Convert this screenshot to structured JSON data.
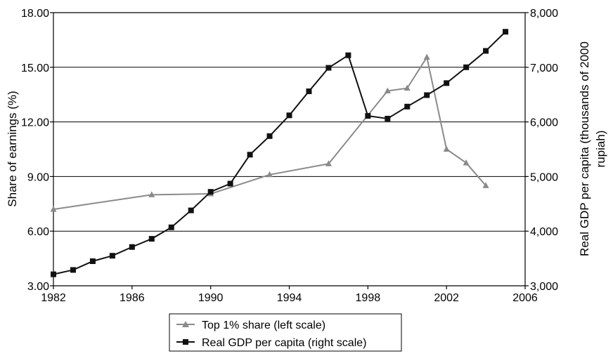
{
  "chart_data": {
    "type": "line",
    "title": "",
    "xlabel": "",
    "ylabel_left": "Share of earnings (%)",
    "ylabel_right_line1": "Real GDP per capita (thousands of 2000",
    "ylabel_right_line2": "rupiah)",
    "xlim": [
      1982,
      2006
    ],
    "ylim_left": [
      3.0,
      18.0
    ],
    "ylim_right": [
      3000,
      8000
    ],
    "x_ticks": [
      "1982",
      "1986",
      "1990",
      "1994",
      "1998",
      "2002",
      "2006"
    ],
    "y_left_ticks": [
      "3.00",
      "6.00",
      "9.00",
      "12.00",
      "15.00",
      "18.00"
    ],
    "y_right_ticks": [
      "3,000",
      "4,000",
      "5,000",
      "6,000",
      "7,000",
      "8,000"
    ],
    "grid": "horizontal",
    "legend_position": "bottom",
    "series": [
      {
        "name": "Top 1% share (left scale)",
        "axis": "left",
        "marker": "triangle",
        "color": "#8a8a8a",
        "x": [
          1982,
          1987,
          1990,
          1993,
          1996,
          1999,
          2000,
          2001,
          2002,
          2003,
          2004
        ],
        "values": [
          7.2,
          8.0,
          8.05,
          9.1,
          9.7,
          13.7,
          13.85,
          15.55,
          10.5,
          9.75,
          8.5
        ]
      },
      {
        "name": "Real GDP per capita (right scale)",
        "axis": "right",
        "marker": "square",
        "color": "#111111",
        "x": [
          1982,
          1983,
          1984,
          1985,
          1986,
          1987,
          1988,
          1989,
          1990,
          1991,
          1992,
          1993,
          1994,
          1995,
          1996,
          1997,
          1998,
          1999,
          2000,
          2001,
          2002,
          2003,
          2004,
          2005
        ],
        "values": [
          3210,
          3290,
          3450,
          3550,
          3710,
          3860,
          4070,
          4380,
          4720,
          4870,
          5400,
          5740,
          6120,
          6560,
          6990,
          7220,
          6110,
          6060,
          6280,
          6490,
          6710,
          7000,
          7300,
          7650
        ]
      }
    ]
  }
}
